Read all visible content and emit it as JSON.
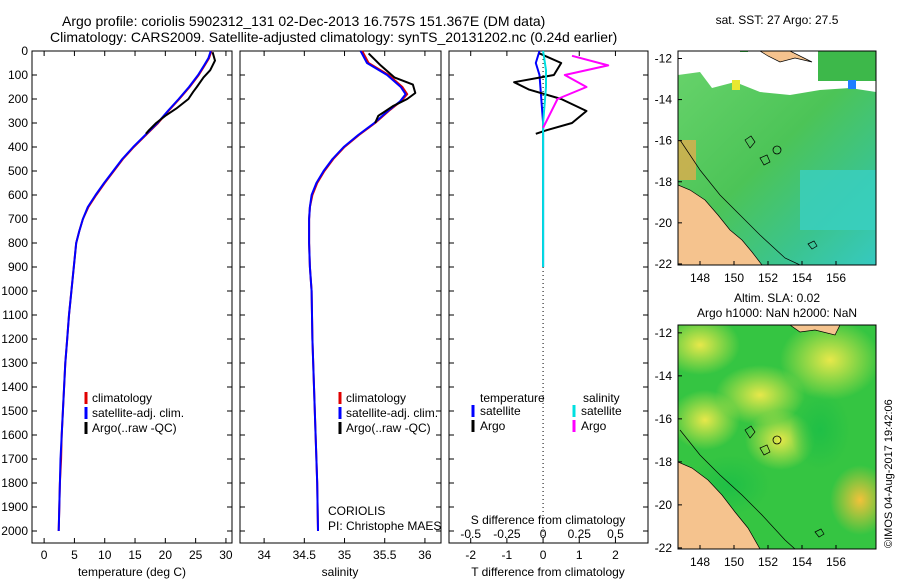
{
  "title": {
    "line1": "Argo profile: coriolis 5902312_131 02-Dec-2013 16.757S 151.367E (DM data)",
    "line2": "Climatology: CARS2009. Satellite-adjusted climatology: synTS_20131202.nc (0.24d earlier)"
  },
  "colors": {
    "climatology": "#e00000",
    "satellite": "#0000ff",
    "argo": "#000000",
    "sat_salinity": "#00e0e0",
    "argo_salinity": "#ff00ff",
    "land": "#f5c38e"
  },
  "chart_data": [
    {
      "id": "temperature",
      "type": "line",
      "xlabel": "temperature (deg C)",
      "xlim": [
        -2,
        31
      ],
      "xticks": [
        0,
        5,
        10,
        15,
        20,
        25,
        30
      ],
      "ylim": [
        2050,
        0
      ],
      "yticks": [
        0,
        100,
        200,
        300,
        400,
        500,
        600,
        700,
        800,
        900,
        1000,
        1100,
        1200,
        1300,
        1400,
        1500,
        1600,
        1700,
        1800,
        1900,
        2000
      ],
      "legend": [
        "climatology",
        "satellite-adj. clim.",
        "Argo(..raw -QC)"
      ],
      "series": [
        {
          "name": "climatology",
          "points": [
            [
              27.6,
              0
            ],
            [
              27.2,
              30
            ],
            [
              26.5,
              60
            ],
            [
              25.5,
              100
            ],
            [
              24,
              150
            ],
            [
              22.3,
              200
            ],
            [
              20.5,
              250
            ],
            [
              18.8,
              300
            ],
            [
              16.8,
              350
            ],
            [
              14.8,
              400
            ],
            [
              13,
              450
            ],
            [
              11.5,
              500
            ],
            [
              10,
              550
            ],
            [
              8.6,
              600
            ],
            [
              7.3,
              650
            ],
            [
              6.4,
              700
            ],
            [
              5.8,
              750
            ],
            [
              5.3,
              800
            ],
            [
              4.9,
              900
            ],
            [
              4.5,
              1000
            ],
            [
              4.1,
              1100
            ],
            [
              3.8,
              1200
            ],
            [
              3.5,
              1300
            ],
            [
              3.3,
              1400
            ],
            [
              3.1,
              1500
            ],
            [
              2.9,
              1600
            ],
            [
              2.8,
              1700
            ],
            [
              2.6,
              1800
            ],
            [
              2.5,
              1900
            ],
            [
              2.4,
              2000
            ]
          ]
        },
        {
          "name": "satellite-adj. clim.",
          "points": [
            [
              27.5,
              0
            ],
            [
              27.1,
              30
            ],
            [
              26.4,
              60
            ],
            [
              25.4,
              100
            ],
            [
              23.9,
              150
            ],
            [
              22.2,
              200
            ],
            [
              20.4,
              250
            ],
            [
              18.7,
              300
            ],
            [
              16.7,
              350
            ],
            [
              14.7,
              400
            ],
            [
              12.9,
              450
            ],
            [
              11.4,
              500
            ],
            [
              9.9,
              550
            ],
            [
              8.5,
              600
            ],
            [
              7.2,
              650
            ],
            [
              6.4,
              700
            ],
            [
              5.8,
              750
            ],
            [
              5.3,
              800
            ],
            [
              4.9,
              900
            ],
            [
              4.5,
              1000
            ],
            [
              4.1,
              1100
            ],
            [
              3.8,
              1200
            ],
            [
              3.5,
              1300
            ],
            [
              3.3,
              1400
            ],
            [
              3.1,
              1500
            ],
            [
              2.9,
              1600
            ],
            [
              2.7,
              1700
            ],
            [
              2.6,
              1800
            ],
            [
              2.5,
              1900
            ],
            [
              2.4,
              2000
            ]
          ]
        },
        {
          "name": "Argo(..raw -QC)",
          "points": [
            [
              27.8,
              5
            ],
            [
              28.2,
              40
            ],
            [
              27.4,
              80
            ],
            [
              26.3,
              110
            ],
            [
              25.2,
              150
            ],
            [
              24.6,
              170
            ],
            [
              23.8,
              200
            ],
            [
              21.8,
              240
            ],
            [
              20,
              270
            ],
            [
              18.5,
              300
            ],
            [
              17.3,
              330
            ],
            [
              16.8,
              345
            ]
          ]
        }
      ]
    },
    {
      "id": "salinity",
      "type": "line",
      "xlabel": "salinity",
      "xlim": [
        33.7,
        36.2
      ],
      "xticks": [
        34,
        34.5,
        35,
        35.5,
        36
      ],
      "ylim": [
        2050,
        0
      ],
      "legend": [
        "climatology",
        "satellite-adj. clim.",
        "Argo(..raw -QC)"
      ],
      "annotation": [
        "CORIOLIS",
        "PI: Christophe MAES"
      ],
      "series": [
        {
          "name": "climatology",
          "points": [
            [
              35.22,
              0
            ],
            [
              35.3,
              50
            ],
            [
              35.55,
              100
            ],
            [
              35.72,
              150
            ],
            [
              35.78,
              180
            ],
            [
              35.7,
              210
            ],
            [
              35.55,
              250
            ],
            [
              35.38,
              300
            ],
            [
              35.18,
              350
            ],
            [
              35.0,
              400
            ],
            [
              34.86,
              450
            ],
            [
              34.75,
              500
            ],
            [
              34.66,
              550
            ],
            [
              34.6,
              600
            ],
            [
              34.57,
              650
            ],
            [
              34.56,
              700
            ],
            [
              34.56,
              800
            ],
            [
              34.57,
              900
            ],
            [
              34.59,
              1000
            ],
            [
              34.6,
              1200
            ],
            [
              34.62,
              1400
            ],
            [
              34.64,
              1600
            ],
            [
              34.66,
              1800
            ],
            [
              34.67,
              2000
            ]
          ]
        },
        {
          "name": "satellite-adj. clim.",
          "points": [
            [
              35.2,
              0
            ],
            [
              35.28,
              50
            ],
            [
              35.53,
              100
            ],
            [
              35.7,
              150
            ],
            [
              35.76,
              180
            ],
            [
              35.69,
              210
            ],
            [
              35.54,
              250
            ],
            [
              35.37,
              300
            ],
            [
              35.17,
              350
            ],
            [
              34.99,
              400
            ],
            [
              34.85,
              450
            ],
            [
              34.74,
              500
            ],
            [
              34.65,
              550
            ],
            [
              34.59,
              600
            ],
            [
              34.57,
              650
            ],
            [
              34.56,
              700
            ],
            [
              34.56,
              800
            ],
            [
              34.57,
              900
            ],
            [
              34.59,
              1000
            ],
            [
              34.6,
              1200
            ],
            [
              34.62,
              1400
            ],
            [
              34.64,
              1600
            ],
            [
              34.66,
              1800
            ],
            [
              34.67,
              2000
            ]
          ]
        },
        {
          "name": "Argo(..raw -QC)",
          "points": [
            [
              35.3,
              10
            ],
            [
              35.45,
              60
            ],
            [
              35.62,
              110
            ],
            [
              35.85,
              140
            ],
            [
              35.88,
              175
            ],
            [
              35.78,
              200
            ],
            [
              35.6,
              230
            ],
            [
              35.42,
              270
            ],
            [
              35.38,
              300
            ]
          ]
        }
      ]
    },
    {
      "id": "difference",
      "type": "line",
      "xlabel": "T difference from climatology",
      "x2label": "S difference from climatology",
      "xlim": [
        -2.6,
        2.9
      ],
      "xticks": [
        -2,
        -1,
        0,
        1,
        2
      ],
      "x2ticks": [
        -0.5,
        -0.25,
        0,
        0.25,
        0.5
      ],
      "x2labels": [
        "-0.5",
        "-0.25",
        "0",
        "0.25",
        "0.5"
      ],
      "ylim": [
        2050,
        0
      ],
      "legend_headers": [
        "temperature",
        "salinity"
      ],
      "legend": [
        "satellite",
        "Argo",
        "satellite",
        "Argo"
      ],
      "series": [
        {
          "name": "temperature satellite",
          "points": [
            [
              -0.1,
              0
            ],
            [
              -0.2,
              50
            ],
            [
              -0.1,
              100
            ],
            [
              -0.05,
              200
            ],
            [
              0,
              300
            ],
            [
              0,
              500
            ],
            [
              0,
              700
            ],
            [
              0,
              800
            ],
            [
              0,
              900
            ]
          ]
        },
        {
          "name": "temperature Argo",
          "points": [
            [
              -0.1,
              10
            ],
            [
              0.5,
              50
            ],
            [
              0.3,
              100
            ],
            [
              -0.8,
              130
            ],
            [
              -0.4,
              160
            ],
            [
              0.5,
              200
            ],
            [
              1.2,
              250
            ],
            [
              0.8,
              300
            ],
            [
              0.1,
              330
            ],
            [
              -0.2,
              345
            ]
          ]
        },
        {
          "name": "salinity satellite",
          "points": [
            [
              0,
              0
            ],
            [
              0.02,
              80
            ],
            [
              0.02,
              150
            ],
            [
              0,
              300
            ],
            [
              0,
              700
            ],
            [
              0,
              900
            ]
          ]
        },
        {
          "name": "salinity Argo",
          "points": [
            [
              0.2,
              20
            ],
            [
              0.45,
              60
            ],
            [
              0.15,
              100
            ],
            [
              0.3,
              150
            ],
            [
              0.1,
              200
            ],
            [
              0.05,
              260
            ],
            [
              0,
              320
            ]
          ]
        }
      ]
    }
  ],
  "maps": [
    {
      "id": "sst-map",
      "title": "sat. SST: 27 Argo: 27.5",
      "xticks": [
        "148",
        "150",
        "152",
        "154",
        "156"
      ],
      "yticks": [
        "-12",
        "-14",
        "-16",
        "-18",
        "-20",
        "-22"
      ]
    },
    {
      "id": "sla-map",
      "title1": "Altim. SLA: 0.02",
      "title2": "Argo h1000: NaN h2000: NaN",
      "xticks": [
        "148",
        "150",
        "152",
        "154",
        "156"
      ],
      "yticks": [
        "-12",
        "-14",
        "-16",
        "-18",
        "-20",
        "-22"
      ]
    }
  ],
  "credit": "©IMOS 04-Aug-2017 19:42:06"
}
